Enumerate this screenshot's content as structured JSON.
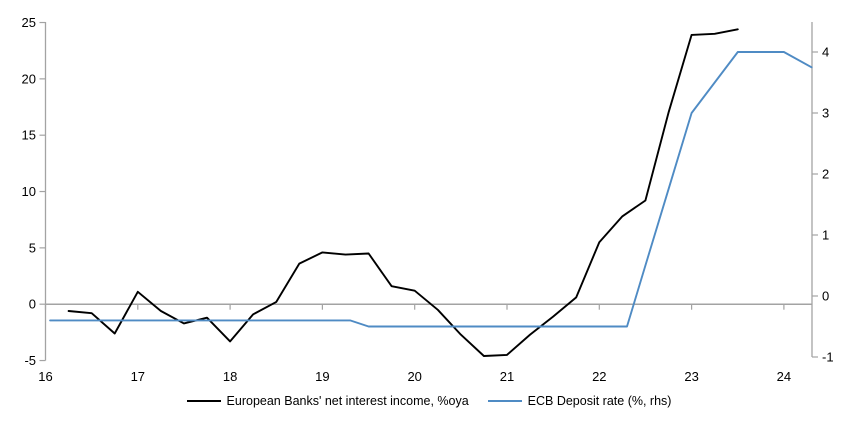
{
  "chart_data": {
    "type": "line",
    "title": "",
    "grid": "zero-line-only",
    "legend_position": "bottom-center",
    "axis_color": "#a3a3a3",
    "x_axis": {
      "min": 16,
      "max": 24.31,
      "ticks": [
        16,
        17,
        18,
        19,
        20,
        21,
        22,
        23,
        24
      ]
    },
    "left_axis": {
      "min": -5,
      "max": 25,
      "ticks": [
        25,
        20,
        15,
        10,
        5,
        0,
        -5
      ]
    },
    "right_axis": {
      "min": -1.1,
      "max": 4.5,
      "ticks": [
        4,
        3,
        2,
        1,
        0,
        -1
      ]
    },
    "series": [
      {
        "name": "European Banks' net interest income, %oya",
        "slug": "european-banks-nii-line",
        "axis": "left",
        "color": "#000000",
        "x": [
          16.25,
          16.5,
          16.75,
          17.0,
          17.25,
          17.5,
          17.75,
          18.0,
          18.25,
          18.5,
          18.75,
          19.0,
          19.25,
          19.5,
          19.75,
          20.0,
          20.25,
          20.5,
          20.75,
          21.0,
          21.25,
          21.5,
          21.75,
          22.0,
          22.25,
          22.5,
          22.75,
          23.0,
          23.25,
          23.5
        ],
        "y": [
          -0.6,
          -0.8,
          -2.6,
          1.1,
          -0.6,
          -1.7,
          -1.2,
          -3.3,
          -0.9,
          0.2,
          3.6,
          4.6,
          4.4,
          4.5,
          1.6,
          1.2,
          -0.5,
          -2.7,
          -4.6,
          -4.5,
          -2.7,
          -1.1,
          0.6,
          5.5,
          7.8,
          9.2,
          17.0,
          23.9,
          24.0,
          24.4
        ]
      },
      {
        "name": "ECB Deposit rate (%, rhs)",
        "slug": "ecb-deposit-rate-line",
        "axis": "right",
        "color": "#4f8bc4",
        "x": [
          16.05,
          19.3,
          19.5,
          22.3,
          22.5,
          22.75,
          23.0,
          23.5,
          24.0,
          24.3
        ],
        "y": [
          -0.4,
          -0.4,
          -0.5,
          -0.5,
          0.5,
          1.75,
          3.0,
          4.0,
          4.0,
          3.75
        ]
      }
    ]
  }
}
